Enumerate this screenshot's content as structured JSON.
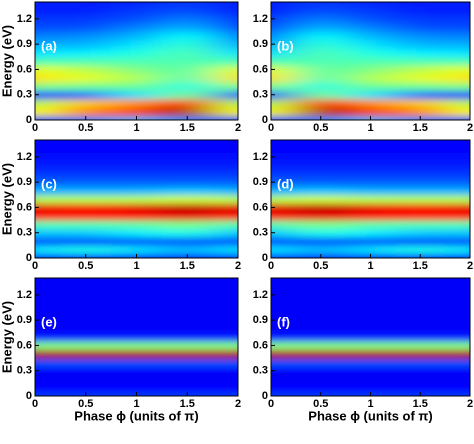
{
  "chart_data": [
    {
      "type": "heatmap",
      "label": "(a)",
      "ylabel": "Energy (eV)",
      "x": [
        0,
        0.5,
        1,
        1.5,
        2
      ],
      "y": [
        0,
        0.1,
        0.2,
        0.3,
        0.4,
        0.5,
        0.6,
        0.7,
        0.8,
        0.9,
        1.0,
        1.1,
        1.2,
        1.3,
        1.4
      ],
      "z": [
        [
          0.2,
          0.25,
          0.3,
          0.25,
          0.2
        ],
        [
          0.62,
          0.75,
          0.82,
          0.97,
          0.62
        ],
        [
          0.55,
          0.68,
          0.74,
          0.88,
          0.55
        ],
        [
          0.2,
          0.22,
          0.35,
          0.5,
          0.2
        ],
        [
          0.5,
          0.48,
          0.48,
          0.4,
          0.5
        ],
        [
          0.65,
          0.6,
          0.55,
          0.45,
          0.65
        ],
        [
          0.6,
          0.56,
          0.5,
          0.46,
          0.6
        ],
        [
          0.45,
          0.45,
          0.45,
          0.45,
          0.45
        ],
        [
          0.35,
          0.36,
          0.4,
          0.45,
          0.35
        ],
        [
          0.3,
          0.3,
          0.35,
          0.42,
          0.3
        ],
        [
          0.25,
          0.26,
          0.3,
          0.38,
          0.25
        ],
        [
          0.2,
          0.2,
          0.25,
          0.3,
          0.2
        ],
        [
          0.18,
          0.18,
          0.2,
          0.25,
          0.18
        ],
        [
          0.15,
          0.15,
          0.18,
          0.2,
          0.15
        ],
        [
          0.15,
          0.15,
          0.16,
          0.18,
          0.15
        ]
      ],
      "xlim": [
        0,
        2
      ],
      "ylim": [
        0,
        1.4
      ],
      "xticks": [
        0,
        0.5,
        1,
        1.5,
        2
      ],
      "yticks": [
        0,
        0.3,
        0.6,
        0.9,
        1.2
      ]
    },
    {
      "type": "heatmap",
      "label": "(b)",
      "x": [
        0,
        0.5,
        1,
        1.5,
        2
      ],
      "y": [
        0,
        0.1,
        0.2,
        0.3,
        0.4,
        0.5,
        0.6,
        0.7,
        0.8,
        0.9,
        1.0,
        1.1,
        1.2,
        1.3,
        1.4
      ],
      "z": [
        [
          0.2,
          0.25,
          0.3,
          0.25,
          0.2
        ],
        [
          0.62,
          0.97,
          0.82,
          0.75,
          0.62
        ],
        [
          0.55,
          0.88,
          0.74,
          0.68,
          0.55
        ],
        [
          0.2,
          0.5,
          0.35,
          0.22,
          0.2
        ],
        [
          0.5,
          0.4,
          0.48,
          0.48,
          0.5
        ],
        [
          0.65,
          0.45,
          0.55,
          0.6,
          0.65
        ],
        [
          0.6,
          0.46,
          0.5,
          0.56,
          0.6
        ],
        [
          0.45,
          0.45,
          0.45,
          0.45,
          0.45
        ],
        [
          0.35,
          0.45,
          0.4,
          0.36,
          0.35
        ],
        [
          0.3,
          0.42,
          0.35,
          0.3,
          0.3
        ],
        [
          0.25,
          0.38,
          0.3,
          0.26,
          0.25
        ],
        [
          0.2,
          0.3,
          0.25,
          0.2,
          0.2
        ],
        [
          0.18,
          0.25,
          0.2,
          0.18,
          0.18
        ],
        [
          0.15,
          0.2,
          0.18,
          0.15,
          0.15
        ],
        [
          0.15,
          0.18,
          0.16,
          0.15,
          0.15
        ]
      ],
      "xlim": [
        0,
        2
      ],
      "ylim": [
        0,
        1.4
      ],
      "xticks": [
        0,
        0.5,
        1,
        1.5,
        2
      ],
      "yticks": [
        0,
        0.3,
        0.6,
        0.9,
        1.2
      ]
    },
    {
      "type": "heatmap",
      "label": "(c)",
      "ylabel": "Energy (eV)",
      "x": [
        0,
        0.5,
        1,
        1.5,
        2
      ],
      "y": [
        0,
        0.1,
        0.2,
        0.3,
        0.4,
        0.5,
        0.6,
        0.7,
        0.8,
        0.9,
        1.0,
        1.1,
        1.2,
        1.3,
        1.4
      ],
      "z": [
        [
          0.13,
          0.13,
          0.13,
          0.13,
          0.13
        ],
        [
          0.35,
          0.4,
          0.35,
          0.3,
          0.35
        ],
        [
          0.2,
          0.2,
          0.2,
          0.2,
          0.2
        ],
        [
          0.32,
          0.32,
          0.36,
          0.4,
          0.32
        ],
        [
          0.45,
          0.45,
          0.46,
          0.5,
          0.45
        ],
        [
          0.85,
          0.85,
          0.86,
          0.9,
          0.85
        ],
        [
          0.9,
          0.88,
          0.9,
          0.95,
          0.9
        ],
        [
          0.55,
          0.55,
          0.55,
          0.58,
          0.55
        ],
        [
          0.3,
          0.3,
          0.3,
          0.32,
          0.3
        ],
        [
          0.22,
          0.22,
          0.22,
          0.22,
          0.22
        ],
        [
          0.18,
          0.18,
          0.18,
          0.18,
          0.18
        ],
        [
          0.15,
          0.15,
          0.15,
          0.15,
          0.15
        ],
        [
          0.14,
          0.14,
          0.14,
          0.14,
          0.14
        ],
        [
          0.13,
          0.13,
          0.13,
          0.13,
          0.13
        ],
        [
          0.13,
          0.13,
          0.13,
          0.13,
          0.13
        ]
      ],
      "xlim": [
        0,
        2
      ],
      "ylim": [
        0,
        1.4
      ],
      "xticks": [
        0,
        0.5,
        1,
        1.5,
        2
      ],
      "yticks": [
        0,
        0.3,
        0.6,
        0.9,
        1.2
      ]
    },
    {
      "type": "heatmap",
      "label": "(d)",
      "x": [
        0,
        0.5,
        1,
        1.5,
        2
      ],
      "y": [
        0,
        0.1,
        0.2,
        0.3,
        0.4,
        0.5,
        0.6,
        0.7,
        0.8,
        0.9,
        1.0,
        1.1,
        1.2,
        1.3,
        1.4
      ],
      "z": [
        [
          0.13,
          0.13,
          0.13,
          0.13,
          0.13
        ],
        [
          0.35,
          0.3,
          0.35,
          0.4,
          0.35
        ],
        [
          0.2,
          0.2,
          0.2,
          0.2,
          0.2
        ],
        [
          0.32,
          0.4,
          0.36,
          0.32,
          0.32
        ],
        [
          0.45,
          0.5,
          0.46,
          0.45,
          0.45
        ],
        [
          0.85,
          0.9,
          0.86,
          0.85,
          0.85
        ],
        [
          0.9,
          0.95,
          0.9,
          0.88,
          0.9
        ],
        [
          0.55,
          0.58,
          0.55,
          0.55,
          0.55
        ],
        [
          0.3,
          0.32,
          0.3,
          0.3,
          0.3
        ],
        [
          0.22,
          0.22,
          0.22,
          0.22,
          0.22
        ],
        [
          0.18,
          0.18,
          0.18,
          0.18,
          0.18
        ],
        [
          0.15,
          0.15,
          0.15,
          0.15,
          0.15
        ],
        [
          0.14,
          0.14,
          0.14,
          0.14,
          0.14
        ],
        [
          0.13,
          0.13,
          0.13,
          0.13,
          0.13
        ],
        [
          0.13,
          0.13,
          0.13,
          0.13,
          0.13
        ]
      ],
      "xlim": [
        0,
        2
      ],
      "ylim": [
        0,
        1.4
      ],
      "xticks": [
        0,
        0.5,
        1,
        1.5,
        2
      ],
      "yticks": [
        0,
        0.3,
        0.6,
        0.9,
        1.2
      ]
    },
    {
      "type": "heatmap",
      "label": "(e)",
      "ylabel": "Energy (eV)",
      "xlabel": "Phase ϕ (units of π)",
      "x": [
        0,
        0.5,
        1,
        1.5,
        2
      ],
      "y": [
        0,
        0.1,
        0.2,
        0.3,
        0.4,
        0.5,
        0.6,
        0.7,
        0.8,
        0.9,
        1.0,
        1.1,
        1.2,
        1.3,
        1.4
      ],
      "z": [
        [
          0.18,
          0.18,
          0.18,
          0.18,
          0.18
        ],
        [
          0.13,
          0.13,
          0.13,
          0.13,
          0.13
        ],
        [
          0.12,
          0.12,
          0.12,
          0.12,
          0.12
        ],
        [
          0.12,
          0.12,
          0.12,
          0.12,
          0.12
        ],
        [
          0.2,
          0.2,
          0.2,
          0.2,
          0.2
        ],
        [
          0.95,
          0.95,
          0.95,
          0.95,
          0.95
        ],
        [
          0.5,
          0.5,
          0.5,
          0.5,
          0.5
        ],
        [
          0.15,
          0.15,
          0.15,
          0.15,
          0.15
        ],
        [
          0.12,
          0.12,
          0.12,
          0.12,
          0.12
        ],
        [
          0.12,
          0.12,
          0.12,
          0.12,
          0.12
        ],
        [
          0.12,
          0.12,
          0.12,
          0.12,
          0.12
        ],
        [
          0.12,
          0.12,
          0.12,
          0.12,
          0.12
        ],
        [
          0.12,
          0.12,
          0.12,
          0.12,
          0.12
        ],
        [
          0.12,
          0.12,
          0.12,
          0.12,
          0.12
        ],
        [
          0.12,
          0.12,
          0.12,
          0.12,
          0.12
        ]
      ],
      "xlim": [
        0,
        2
      ],
      "ylim": [
        0,
        1.4
      ],
      "xticks": [
        0,
        0.5,
        1,
        1.5,
        2
      ],
      "yticks": [
        0,
        0.3,
        0.6,
        0.9,
        1.2
      ]
    },
    {
      "type": "heatmap",
      "label": "(f)",
      "xlabel": "Phase ϕ (units of π)",
      "x": [
        0,
        0.5,
        1,
        1.5,
        2
      ],
      "y": [
        0,
        0.1,
        0.2,
        0.3,
        0.4,
        0.5,
        0.6,
        0.7,
        0.8,
        0.9,
        1.0,
        1.1,
        1.2,
        1.3,
        1.4
      ],
      "z": [
        [
          0.18,
          0.18,
          0.18,
          0.18,
          0.18
        ],
        [
          0.13,
          0.13,
          0.13,
          0.13,
          0.13
        ],
        [
          0.12,
          0.12,
          0.12,
          0.12,
          0.12
        ],
        [
          0.12,
          0.12,
          0.12,
          0.12,
          0.12
        ],
        [
          0.2,
          0.2,
          0.2,
          0.2,
          0.2
        ],
        [
          0.95,
          0.95,
          0.95,
          0.95,
          0.95
        ],
        [
          0.5,
          0.5,
          0.5,
          0.5,
          0.5
        ],
        [
          0.15,
          0.15,
          0.15,
          0.15,
          0.15
        ],
        [
          0.12,
          0.12,
          0.12,
          0.12,
          0.12
        ],
        [
          0.12,
          0.12,
          0.12,
          0.12,
          0.12
        ],
        [
          0.12,
          0.12,
          0.12,
          0.12,
          0.12
        ],
        [
          0.12,
          0.12,
          0.12,
          0.12,
          0.12
        ],
        [
          0.12,
          0.12,
          0.12,
          0.12,
          0.12
        ],
        [
          0.12,
          0.12,
          0.12,
          0.12,
          0.12
        ],
        [
          0.12,
          0.12,
          0.12,
          0.12,
          0.12
        ]
      ],
      "xlim": [
        0,
        2
      ],
      "ylim": [
        0,
        1.4
      ],
      "xticks": [
        0,
        0.5,
        1,
        1.5,
        2
      ],
      "yticks": [
        0,
        0.3,
        0.6,
        0.9,
        1.2
      ]
    }
  ]
}
